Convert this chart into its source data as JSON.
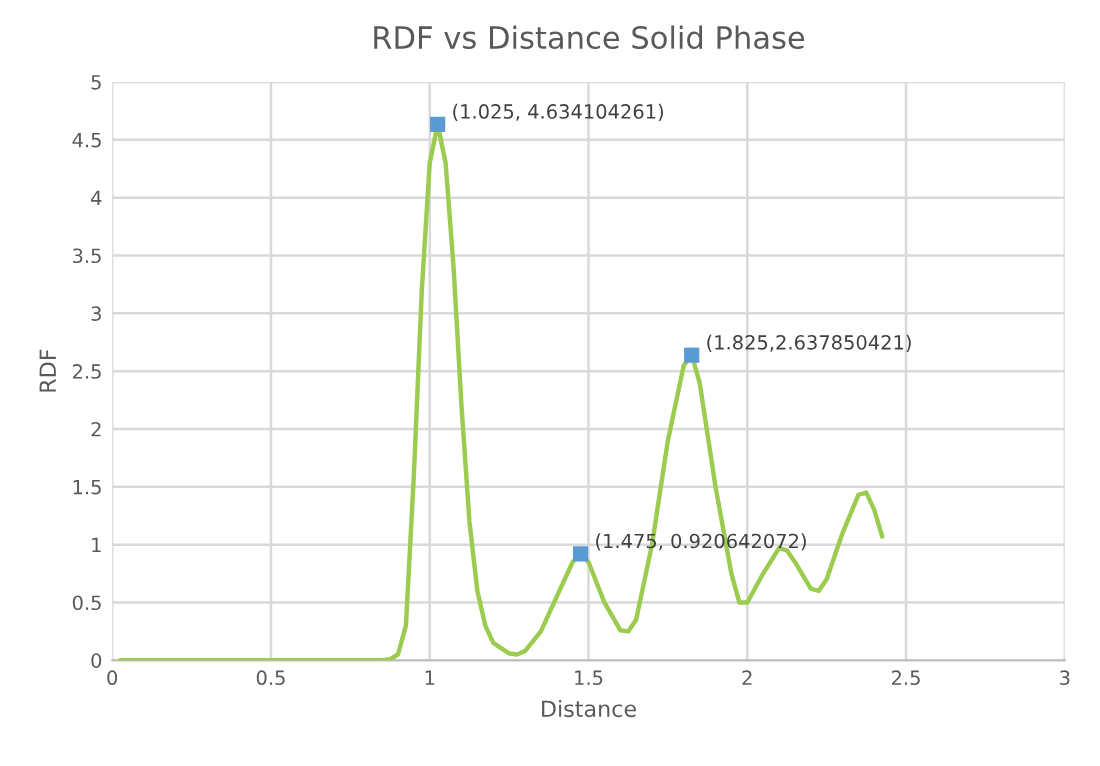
{
  "chart_data": {
    "type": "line",
    "title": "RDF vs Distance Solid Phase",
    "xlabel": "Distance",
    "ylabel": "RDF",
    "xlim": [
      0,
      3
    ],
    "xticks": [
      0,
      0.5,
      1,
      1.5,
      2,
      2.5,
      3
    ],
    "ylim": [
      0,
      5
    ],
    "yticks": [
      0,
      0.5,
      1,
      1.5,
      2,
      2.5,
      3,
      3.5,
      4,
      4.5,
      5
    ],
    "grid": true,
    "legend": false,
    "series": [
      {
        "color": "#9bcb4f",
        "marker": "none",
        "x": [
          0.025,
          0.2,
          0.4,
          0.6,
          0.8,
          0.85,
          0.875,
          0.9,
          0.925,
          0.95,
          0.975,
          1.0,
          1.025,
          1.05,
          1.075,
          1.1,
          1.125,
          1.15,
          1.175,
          1.2,
          1.25,
          1.275,
          1.3,
          1.35,
          1.4,
          1.45,
          1.475,
          1.5,
          1.55,
          1.6,
          1.625,
          1.65,
          1.7,
          1.75,
          1.8,
          1.825,
          1.85,
          1.9,
          1.95,
          1.975,
          2.0,
          2.05,
          2.1,
          2.125,
          2.15,
          2.2,
          2.225,
          2.25,
          2.3,
          2.35,
          2.375,
          2.4,
          2.425
        ],
        "values": [
          0,
          0,
          0,
          0,
          0,
          0,
          0.01,
          0.05,
          0.3,
          1.6,
          3.2,
          4.3,
          4.634104261,
          4.3,
          3.4,
          2.2,
          1.2,
          0.6,
          0.3,
          0.15,
          0.06,
          0.05,
          0.08,
          0.25,
          0.55,
          0.85,
          0.920642072,
          0.85,
          0.5,
          0.26,
          0.25,
          0.35,
          1.0,
          1.9,
          2.55,
          2.637850421,
          2.4,
          1.5,
          0.75,
          0.5,
          0.5,
          0.75,
          0.97,
          0.95,
          0.85,
          0.62,
          0.6,
          0.7,
          1.1,
          1.43,
          1.45,
          1.3,
          1.07
        ]
      },
      {
        "type": "scatter",
        "color": "#5b9bd5",
        "marker": "square",
        "x": [
          1.025,
          1.475,
          1.825
        ],
        "values": [
          4.634104261,
          0.920642072,
          2.637850421
        ]
      }
    ],
    "annotations": [
      {
        "text": "(1.025, 4.634104261)",
        "x": 1.025,
        "y": 4.634104261
      },
      {
        "text": "(1.475, 0.920642072)",
        "x": 1.475,
        "y": 0.920642072
      },
      {
        "text": "(1.825,2.637850421)",
        "x": 1.825,
        "y": 2.637850421
      }
    ]
  }
}
